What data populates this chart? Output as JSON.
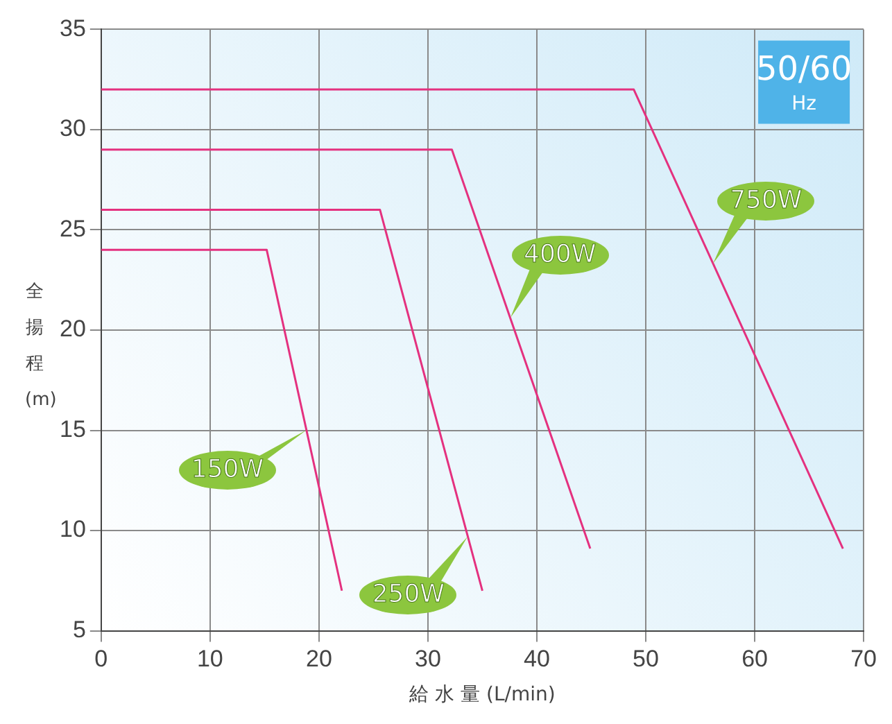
{
  "chart_data": {
    "type": "line",
    "xlabel": "給 水 量 (L/min)",
    "ylabel": "全揚程 (m)",
    "series": [
      {
        "name": "150W",
        "color": "#e4317f",
        "x": [
          0,
          15.2,
          22.1
        ],
        "values": [
          24,
          24,
          7
        ]
      },
      {
        "name": "250W",
        "color": "#e4317f",
        "x": [
          0,
          25.6,
          35
        ],
        "values": [
          26,
          26,
          7
        ]
      },
      {
        "name": "400W",
        "color": "#e4317f",
        "x": [
          0,
          32.2,
          44.9
        ],
        "values": [
          29,
          29,
          9.1
        ]
      },
      {
        "name": "750W",
        "color": "#e4317f",
        "x": [
          0,
          48.9,
          68.1
        ],
        "values": [
          32,
          32,
          9.1
        ]
      }
    ],
    "annotations": [
      "50/60 Hz"
    ],
    "xlim": [
      0,
      70
    ],
    "xticks": [
      0,
      10,
      20,
      30,
      40,
      50,
      60,
      70
    ],
    "ylim": [
      5,
      35
    ],
    "yticks": [
      5,
      10,
      15,
      20,
      25,
      30,
      35
    ],
    "grid": true,
    "legend": false,
    "marker": "none",
    "line_style": "solid"
  }
}
